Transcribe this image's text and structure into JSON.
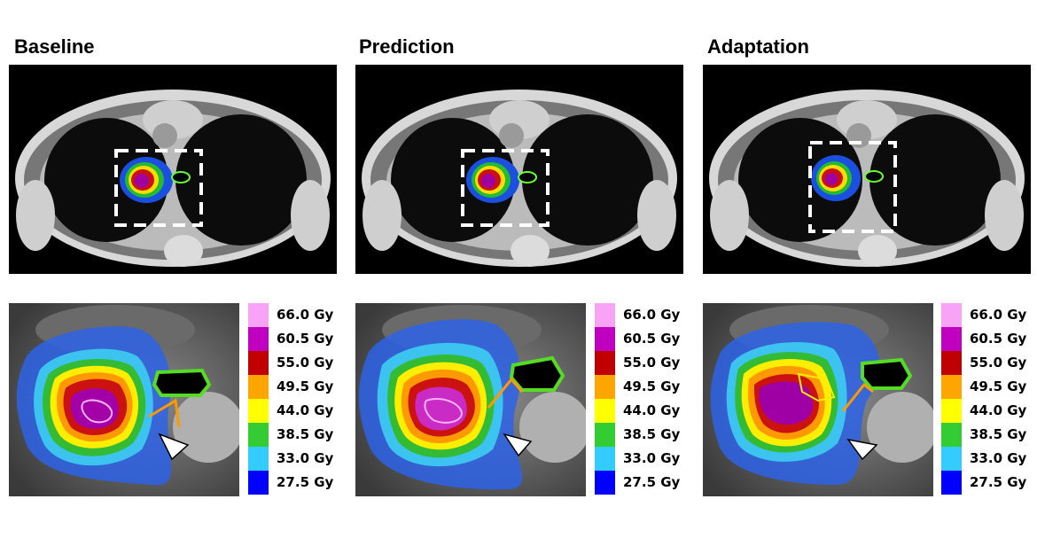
{
  "panels": [
    {
      "title": "Baseline"
    },
    {
      "title": "Prediction"
    },
    {
      "title": "Adaptation"
    }
  ],
  "legend": [
    {
      "label": "66.0 Gy",
      "color": "#f9a3f7"
    },
    {
      "label": "60.5 Gy",
      "color": "#c000c0"
    },
    {
      "label": "55.0 Gy",
      "color": "#c00000"
    },
    {
      "label": "49.5 Gy",
      "color": "#ffa500"
    },
    {
      "label": "44.0 Gy",
      "color": "#ffff00"
    },
    {
      "label": "38.5 Gy",
      "color": "#33cc33"
    },
    {
      "label": "33.0 Gy",
      "color": "#33ccff"
    },
    {
      "label": "27.5 Gy",
      "color": "#0000ff"
    }
  ]
}
